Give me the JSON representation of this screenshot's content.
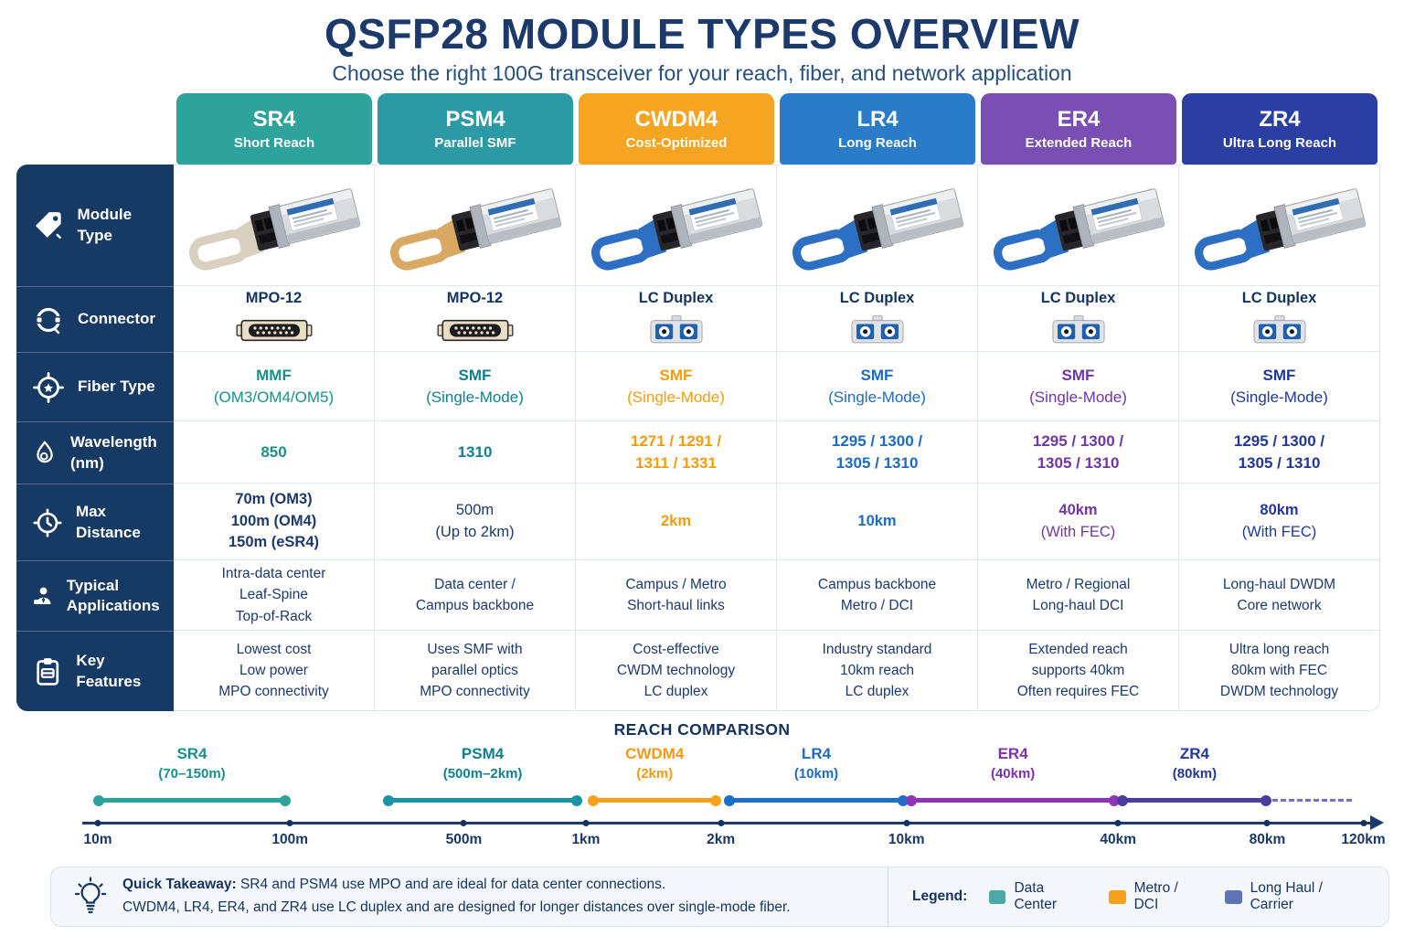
{
  "title": "QSFP28 MODULE TYPES OVERVIEW",
  "subtitle": "Choose the right 100G transceiver for your reach, fiber, and network application",
  "palette": {
    "navy": "#1C3A6B",
    "sidebar_navy": "#173A64",
    "border": "#DFE8F2"
  },
  "row_labels": [
    {
      "label": "Module Type",
      "icon": "tag-icon"
    },
    {
      "label": "Connector",
      "icon": "port-icon"
    },
    {
      "label": "Fiber Type",
      "icon": "target-icon"
    },
    {
      "label": "Wavelength (nm)",
      "icon": "droplet-icon"
    },
    {
      "label": "Max Distance",
      "icon": "stopwatch-icon"
    },
    {
      "label": "Typical Applications",
      "icon": "person-icon"
    },
    {
      "label": "Key Features",
      "icon": "clipboard-icon"
    }
  ],
  "columns": [
    {
      "id": "sr4",
      "name": "SR4",
      "tagline": "Short Reach",
      "header_color": "#2EA39C",
      "accent": "#17918A",
      "tab_color": "#D9D0BF",
      "connector": {
        "label": "MPO-12",
        "type": "mpo"
      },
      "fiber": {
        "lines": [
          "MMF",
          "(OM3/OM4/OM5)"
        ]
      },
      "wavelength": {
        "lines": [
          "850"
        ]
      },
      "distance": {
        "color": "#1C3A6B",
        "lines": [
          "70m (OM3)",
          "100m (OM4)",
          "150m (eSR4)"
        ],
        "bold": [
          true,
          true,
          true
        ]
      },
      "applications": [
        "Intra-data center",
        "Leaf-Spine",
        "Top-of-Rack"
      ],
      "features": [
        "Lowest cost",
        "Low power",
        "MPO connectivity"
      ]
    },
    {
      "id": "psm4",
      "name": "PSM4",
      "tagline": "Parallel SMF",
      "header_color": "#2C9AA4",
      "accent": "#11818F",
      "tab_color": "#D9A963",
      "connector": {
        "label": "MPO-12",
        "type": "mpo"
      },
      "fiber": {
        "lines": [
          "SMF",
          "(Single-Mode)"
        ]
      },
      "wavelength": {
        "lines": [
          "1310"
        ]
      },
      "distance": {
        "color": "#1C3A6B",
        "lines": [
          "500m",
          "(Up to 2km)"
        ],
        "bold": [
          false,
          false
        ]
      },
      "applications": [
        "Data center /",
        "Campus backbone"
      ],
      "features": [
        "Uses SMF with",
        "parallel optics",
        "MPO connectivity"
      ]
    },
    {
      "id": "cwdm4",
      "name": "CWDM4",
      "tagline": "Cost-Optimized",
      "header_color": "#F5A522",
      "accent": "#F49C10",
      "tab_color": "#2D6FC3",
      "connector": {
        "label": "LC Duplex",
        "type": "lc"
      },
      "fiber": {
        "lines": [
          "SMF",
          "(Single-Mode)"
        ]
      },
      "wavelength": {
        "lines": [
          "1271 / 1291 /",
          "1311 / 1331"
        ]
      },
      "distance": {
        "color": "#F49C10",
        "lines": [
          "2km"
        ],
        "bold": [
          true
        ]
      },
      "applications": [
        "Campus / Metro",
        "Short-haul links"
      ],
      "features": [
        "Cost-effective",
        "CWDM technology",
        "LC duplex"
      ]
    },
    {
      "id": "lr4",
      "name": "LR4",
      "tagline": "Long Reach",
      "header_color": "#2A7CC9",
      "accent": "#1C6CC4",
      "tab_color": "#2D6FC3",
      "connector": {
        "label": "LC Duplex",
        "type": "lc"
      },
      "fiber": {
        "lines": [
          "SMF",
          "(Single-Mode)"
        ]
      },
      "wavelength": {
        "lines": [
          "1295 / 1300 /",
          "1305 / 1310"
        ]
      },
      "distance": {
        "color": "#1C6CC4",
        "lines": [
          "10km"
        ],
        "bold": [
          true
        ]
      },
      "applications": [
        "Campus backbone",
        "Metro / DCI"
      ],
      "features": [
        "Industry standard",
        "10km reach",
        "LC duplex"
      ]
    },
    {
      "id": "er4",
      "name": "ER4",
      "tagline": "Extended Reach",
      "header_color": "#7A4FB4",
      "accent": "#7136A9",
      "tab_color": "#2D6FC3",
      "connector": {
        "label": "LC Duplex",
        "type": "lc"
      },
      "fiber": {
        "lines": [
          "SMF",
          "(Single-Mode)"
        ]
      },
      "wavelength": {
        "lines": [
          "1295 / 1300 /",
          "1305 / 1310"
        ]
      },
      "distance": {
        "color": "#7136A9",
        "lines": [
          "40km",
          "(With FEC)"
        ],
        "bold": [
          true,
          false
        ]
      },
      "applications": [
        "Metro / Regional",
        "Long-haul DCI"
      ],
      "features": [
        "Extended reach",
        "supports 40km",
        "Often requires FEC"
      ]
    },
    {
      "id": "zr4",
      "name": "ZR4",
      "tagline": "Ultra Long Reach",
      "header_color": "#2B3EA2",
      "accent": "#21379B",
      "tab_color": "#2D6FC3",
      "connector": {
        "label": "LC Duplex",
        "type": "lc"
      },
      "fiber": {
        "lines": [
          "SMF",
          "(Single-Mode)"
        ]
      },
      "wavelength": {
        "lines": [
          "1295 / 1300 /",
          "1305 / 1310"
        ]
      },
      "distance": {
        "color": "#21379B",
        "lines": [
          "80km",
          "(With FEC)"
        ],
        "bold": [
          true,
          false
        ]
      },
      "applications": [
        "Long-haul DWDM",
        "Core network"
      ],
      "features": [
        "Ultra long reach",
        "80km with FEC",
        "DWDM technology"
      ]
    }
  ],
  "reach": {
    "title": "REACH COMPARISON",
    "ticks": [
      {
        "label": "10m",
        "pos": 1.2
      },
      {
        "label": "100m",
        "pos": 16.0
      },
      {
        "label": "500m",
        "pos": 29.4
      },
      {
        "label": "1km",
        "pos": 38.8
      },
      {
        "label": "2km",
        "pos": 49.2
      },
      {
        "label": "10km",
        "pos": 63.5
      },
      {
        "label": "40km",
        "pos": 79.8
      },
      {
        "label": "80km",
        "pos": 91.3
      },
      {
        "label": "120km",
        "pos": 98.7
      }
    ],
    "segments": [
      {
        "id": "sr4",
        "name": "SR4",
        "range": "(70–150m)",
        "color": "#2AA39B",
        "text_color": "#16918A",
        "start": 1.2,
        "end": 15.7
      },
      {
        "id": "psm4",
        "name": "PSM4",
        "range": "(500m–2km)",
        "color": "#1A93A3",
        "text_color": "#11808F",
        "start": 23.5,
        "end": 38.2
      },
      {
        "id": "cwdm4",
        "name": "CWDM4",
        "range": "(2km)",
        "color": "#F7A11B",
        "text_color": "#F59A10",
        "start": 39.3,
        "end": 48.9
      },
      {
        "id": "lr4",
        "name": "LR4",
        "range": "(10km)",
        "color": "#1D70C8",
        "text_color": "#1D6BC4",
        "start": 49.8,
        "end": 63.3
      },
      {
        "id": "er4",
        "name": "ER4",
        "range": "(40km)",
        "color": "#8D35B5",
        "text_color": "#7B32AC",
        "start": 63.8,
        "end": 79.6
      },
      {
        "id": "zr4",
        "name": "ZR4",
        "range": "(80km)",
        "color": "#4A3D9E",
        "text_color": "#21389B",
        "start": 80.1,
        "end": 91.3,
        "dash_to": 97.8
      }
    ]
  },
  "chart_data": {
    "type": "range",
    "title": "REACH COMPARISON",
    "x_ticks": [
      "10m",
      "100m",
      "500m",
      "1km",
      "2km",
      "10km",
      "40km",
      "80km",
      "120km"
    ],
    "series": [
      {
        "name": "SR4",
        "reach": "70–150m"
      },
      {
        "name": "PSM4",
        "reach": "500m–2km"
      },
      {
        "name": "CWDM4",
        "reach": "2km"
      },
      {
        "name": "LR4",
        "reach": "10km"
      },
      {
        "name": "ER4",
        "reach": "40km"
      },
      {
        "name": "ZR4",
        "reach": "80km"
      }
    ],
    "legend_position": "bottom-right",
    "grid": false
  },
  "footer": {
    "takeaway_label": "Quick Takeaway:",
    "takeaway_line1": "SR4 and PSM4 use MPO and are ideal for data center connections.",
    "takeaway_line2": "CWDM4, LR4, ER4, and ZR4 use LC duplex and are designed for longer distances over single-mode fiber.",
    "legend_label": "Legend:",
    "legend": [
      {
        "label": "Data Center",
        "color": "#4BABA4"
      },
      {
        "label": "Metro / DCI",
        "color": "#F8A01C"
      },
      {
        "label": "Long Haul / Carrier",
        "color": "#5F74B8"
      }
    ]
  }
}
